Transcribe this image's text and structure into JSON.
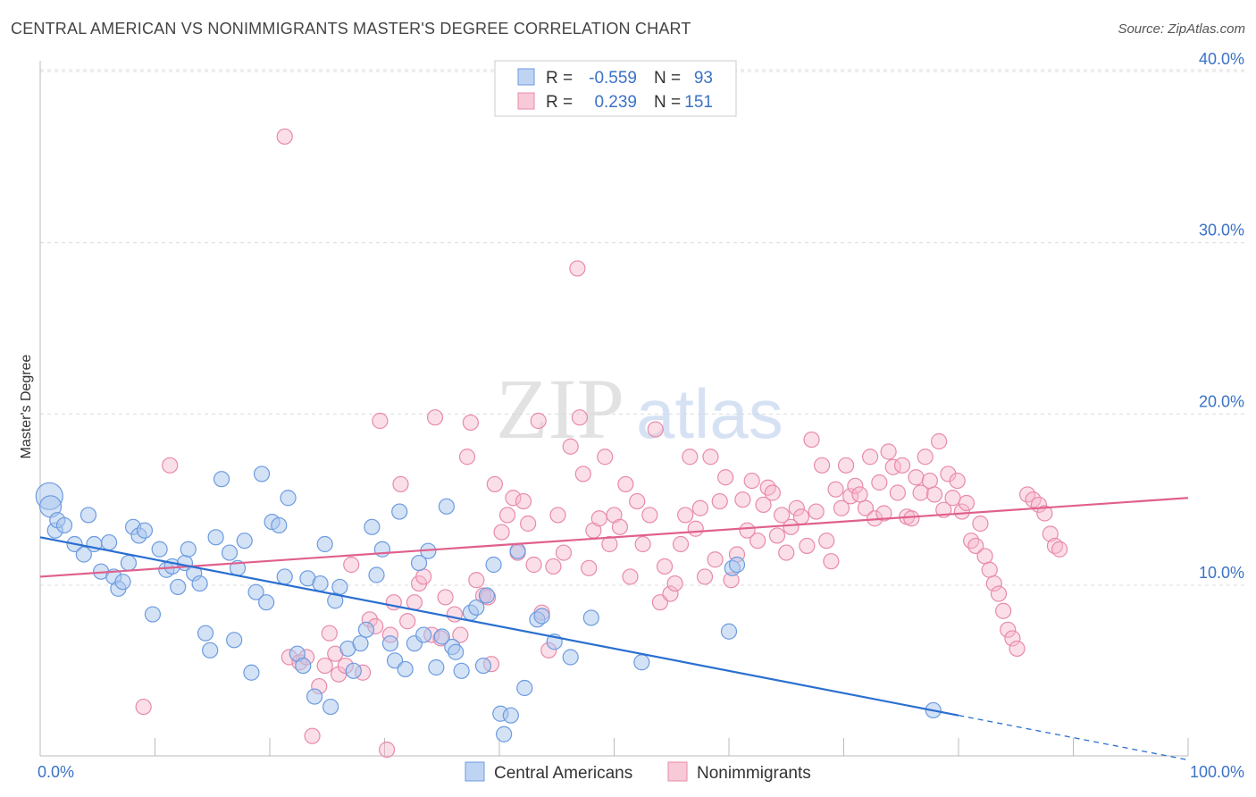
{
  "title": "CENTRAL AMERICAN VS NONIMMIGRANTS MASTER'S DEGREE CORRELATION CHART",
  "source": "Source: ZipAtlas.com",
  "watermark": {
    "zip": "ZIP",
    "atlas": "atlas"
  },
  "chart_data": {
    "type": "scatter",
    "xlabel": "",
    "ylabel": "Master's Degree",
    "xlim": [
      0,
      100
    ],
    "ylim": [
      0,
      42
    ],
    "x_tick_labels": [
      "0.0%",
      "100.0%"
    ],
    "y_ticks": [
      10,
      20,
      30,
      40
    ],
    "y_tick_labels": [
      "10.0%",
      "20.0%",
      "30.0%",
      "40.0%"
    ],
    "grid": true,
    "legend_position": "top-center",
    "colors": {
      "blue_fill": "#a9c6ee",
      "blue_stroke": "#6b9be0",
      "blue_line": "#2a6fd0",
      "pink_fill": "#f6b8cb",
      "pink_stroke": "#e88aa8",
      "pink_line": "#e0608c",
      "axis_blue_text": "#3b72c6"
    },
    "stats": [
      {
        "r_label": "R =",
        "r_value": "-0.559",
        "n_label": "N =",
        "n_value": "93"
      },
      {
        "r_label": "R =",
        "r_value": "0.239",
        "n_label": "N =",
        "n_value": "151"
      }
    ],
    "series": [
      {
        "name": "Central Americans",
        "trend": {
          "x0": 0,
          "y0": 12.8,
          "x1": 80,
          "y1": 2.4,
          "dash_to_x": 100,
          "dash_to_y": -0.2
        },
        "points": [
          [
            0.8,
            15.2
          ],
          [
            0.9,
            14.6
          ],
          [
            1.3,
            13.2
          ],
          [
            1.5,
            13.8
          ],
          [
            2.1,
            13.5
          ],
          [
            3.0,
            12.4
          ],
          [
            3.8,
            11.8
          ],
          [
            4.2,
            14.1
          ],
          [
            4.7,
            12.4
          ],
          [
            5.3,
            10.8
          ],
          [
            6.0,
            12.5
          ],
          [
            6.4,
            10.5
          ],
          [
            6.8,
            9.8
          ],
          [
            7.2,
            10.2
          ],
          [
            7.7,
            11.3
          ],
          [
            8.1,
            13.4
          ],
          [
            8.6,
            12.9
          ],
          [
            9.1,
            13.2
          ],
          [
            9.8,
            8.3
          ],
          [
            10.4,
            12.1
          ],
          [
            11.0,
            10.9
          ],
          [
            11.5,
            11.1
          ],
          [
            12.0,
            9.9
          ],
          [
            12.6,
            11.3
          ],
          [
            12.9,
            12.1
          ],
          [
            13.4,
            10.7
          ],
          [
            13.9,
            10.1
          ],
          [
            14.4,
            7.2
          ],
          [
            14.8,
            6.2
          ],
          [
            15.3,
            12.8
          ],
          [
            15.8,
            16.2
          ],
          [
            16.5,
            11.9
          ],
          [
            16.9,
            6.8
          ],
          [
            17.2,
            11.0
          ],
          [
            17.8,
            12.6
          ],
          [
            18.4,
            4.9
          ],
          [
            18.8,
            9.6
          ],
          [
            19.3,
            16.5
          ],
          [
            19.7,
            9.0
          ],
          [
            20.2,
            13.7
          ],
          [
            20.8,
            13.5
          ],
          [
            21.3,
            10.5
          ],
          [
            21.6,
            15.1
          ],
          [
            22.4,
            6.0
          ],
          [
            22.9,
            5.3
          ],
          [
            23.3,
            10.4
          ],
          [
            23.9,
            3.5
          ],
          [
            24.4,
            10.1
          ],
          [
            24.8,
            12.4
          ],
          [
            25.3,
            2.9
          ],
          [
            25.7,
            9.1
          ],
          [
            26.1,
            9.9
          ],
          [
            26.8,
            6.3
          ],
          [
            27.3,
            5.0
          ],
          [
            27.9,
            6.6
          ],
          [
            28.4,
            7.4
          ],
          [
            28.9,
            13.4
          ],
          [
            29.3,
            10.6
          ],
          [
            29.8,
            12.1
          ],
          [
            30.5,
            6.6
          ],
          [
            30.9,
            5.6
          ],
          [
            31.3,
            14.3
          ],
          [
            31.8,
            5.1
          ],
          [
            32.6,
            6.6
          ],
          [
            33.0,
            11.3
          ],
          [
            33.4,
            7.1
          ],
          [
            33.8,
            12.0
          ],
          [
            34.5,
            5.2
          ],
          [
            35.0,
            7.0
          ],
          [
            35.4,
            14.6
          ],
          [
            35.9,
            6.4
          ],
          [
            36.2,
            6.1
          ],
          [
            36.7,
            5.0
          ],
          [
            37.5,
            8.4
          ],
          [
            38.0,
            8.7
          ],
          [
            38.6,
            5.3
          ],
          [
            38.9,
            9.4
          ],
          [
            39.5,
            11.2
          ],
          [
            40.1,
            2.5
          ],
          [
            40.4,
            1.3
          ],
          [
            41.0,
            2.4
          ],
          [
            41.6,
            12.0
          ],
          [
            42.2,
            4.0
          ],
          [
            43.3,
            8.0
          ],
          [
            43.7,
            8.2
          ],
          [
            44.8,
            6.7
          ],
          [
            46.2,
            5.8
          ],
          [
            48.0,
            8.1
          ],
          [
            52.4,
            5.5
          ],
          [
            60.3,
            11.0
          ],
          [
            60.7,
            11.2
          ],
          [
            60.0,
            7.3
          ],
          [
            77.8,
            2.7
          ]
        ]
      },
      {
        "name": "Nonimmigrants",
        "trend": {
          "x0": 0,
          "y0": 10.5,
          "x1": 100,
          "y1": 15.1
        },
        "points": [
          [
            9.0,
            2.9
          ],
          [
            11.3,
            17.0
          ],
          [
            21.3,
            36.2
          ],
          [
            21.7,
            5.8
          ],
          [
            22.6,
            5.5
          ],
          [
            23.2,
            5.8
          ],
          [
            23.7,
            1.2
          ],
          [
            24.3,
            4.1
          ],
          [
            24.8,
            5.3
          ],
          [
            25.2,
            7.2
          ],
          [
            25.7,
            6.0
          ],
          [
            26.0,
            4.8
          ],
          [
            26.6,
            5.3
          ],
          [
            27.1,
            11.2
          ],
          [
            28.1,
            4.9
          ],
          [
            28.7,
            8.0
          ],
          [
            29.2,
            7.6
          ],
          [
            29.6,
            19.6
          ],
          [
            30.2,
            0.4
          ],
          [
            30.5,
            7.1
          ],
          [
            30.8,
            9.0
          ],
          [
            31.4,
            15.9
          ],
          [
            32.0,
            7.9
          ],
          [
            32.6,
            9.0
          ],
          [
            33.0,
            10.1
          ],
          [
            33.4,
            10.5
          ],
          [
            34.1,
            7.1
          ],
          [
            34.4,
            19.8
          ],
          [
            34.9,
            6.9
          ],
          [
            35.3,
            9.3
          ],
          [
            36.1,
            8.3
          ],
          [
            36.6,
            7.1
          ],
          [
            37.2,
            17.5
          ],
          [
            37.5,
            19.5
          ],
          [
            38.0,
            10.3
          ],
          [
            38.6,
            9.4
          ],
          [
            39.0,
            9.3
          ],
          [
            39.3,
            5.4
          ],
          [
            39.6,
            15.9
          ],
          [
            40.2,
            13.1
          ],
          [
            40.7,
            14.1
          ],
          [
            41.2,
            15.1
          ],
          [
            41.6,
            11.9
          ],
          [
            42.1,
            14.9
          ],
          [
            42.5,
            13.6
          ],
          [
            43.0,
            11.2
          ],
          [
            43.4,
            19.6
          ],
          [
            43.7,
            8.4
          ],
          [
            44.3,
            6.2
          ],
          [
            44.7,
            11.1
          ],
          [
            45.1,
            14.1
          ],
          [
            45.6,
            11.9
          ],
          [
            46.2,
            18.1
          ],
          [
            46.8,
            28.5
          ],
          [
            47.0,
            19.8
          ],
          [
            47.3,
            16.5
          ],
          [
            47.8,
            11.0
          ],
          [
            48.2,
            13.2
          ],
          [
            48.7,
            13.9
          ],
          [
            49.2,
            17.5
          ],
          [
            49.6,
            12.4
          ],
          [
            50.0,
            14.1
          ],
          [
            50.5,
            13.4
          ],
          [
            51.0,
            15.9
          ],
          [
            51.4,
            10.5
          ],
          [
            52.0,
            14.9
          ],
          [
            52.5,
            12.4
          ],
          [
            53.1,
            14.1
          ],
          [
            53.6,
            19.1
          ],
          [
            54.0,
            9.0
          ],
          [
            54.4,
            11.1
          ],
          [
            54.9,
            9.5
          ],
          [
            55.3,
            10.1
          ],
          [
            55.8,
            12.4
          ],
          [
            56.2,
            14.1
          ],
          [
            56.6,
            17.5
          ],
          [
            57.1,
            13.3
          ],
          [
            57.5,
            14.5
          ],
          [
            57.9,
            10.5
          ],
          [
            58.4,
            17.5
          ],
          [
            58.8,
            11.5
          ],
          [
            59.2,
            14.9
          ],
          [
            59.7,
            16.3
          ],
          [
            60.2,
            10.3
          ],
          [
            60.7,
            11.8
          ],
          [
            61.2,
            15.0
          ],
          [
            61.6,
            13.2
          ],
          [
            62.0,
            16.1
          ],
          [
            62.5,
            12.6
          ],
          [
            63.0,
            14.7
          ],
          [
            63.4,
            15.7
          ],
          [
            63.8,
            15.4
          ],
          [
            64.2,
            12.9
          ],
          [
            64.6,
            14.1
          ],
          [
            65.0,
            11.9
          ],
          [
            65.4,
            13.4
          ],
          [
            65.9,
            14.5
          ],
          [
            66.3,
            14.0
          ],
          [
            66.8,
            12.3
          ],
          [
            67.2,
            18.5
          ],
          [
            67.6,
            14.3
          ],
          [
            68.1,
            17.0
          ],
          [
            68.5,
            12.6
          ],
          [
            68.9,
            11.4
          ],
          [
            69.3,
            15.6
          ],
          [
            69.8,
            14.5
          ],
          [
            70.2,
            17.0
          ],
          [
            70.6,
            15.2
          ],
          [
            71.0,
            15.8
          ],
          [
            71.4,
            15.3
          ],
          [
            71.9,
            14.5
          ],
          [
            72.3,
            17.5
          ],
          [
            72.7,
            13.9
          ],
          [
            73.1,
            16.0
          ],
          [
            73.5,
            14.2
          ],
          [
            73.9,
            17.8
          ],
          [
            74.3,
            16.9
          ],
          [
            74.7,
            15.4
          ],
          [
            75.1,
            17.0
          ],
          [
            75.5,
            14.0
          ],
          [
            75.9,
            13.9
          ],
          [
            76.3,
            16.3
          ],
          [
            76.7,
            15.4
          ],
          [
            77.1,
            17.5
          ],
          [
            77.5,
            16.1
          ],
          [
            77.9,
            15.3
          ],
          [
            78.3,
            18.4
          ],
          [
            78.7,
            14.4
          ],
          [
            79.1,
            16.5
          ],
          [
            79.5,
            15.1
          ],
          [
            79.9,
            16.1
          ],
          [
            80.3,
            14.3
          ],
          [
            80.7,
            14.8
          ],
          [
            81.1,
            12.6
          ],
          [
            81.5,
            12.3
          ],
          [
            81.9,
            13.6
          ],
          [
            82.3,
            11.7
          ],
          [
            82.7,
            10.9
          ],
          [
            83.1,
            10.1
          ],
          [
            83.5,
            9.5
          ],
          [
            83.9,
            8.5
          ],
          [
            84.3,
            7.4
          ],
          [
            84.7,
            6.9
          ],
          [
            85.1,
            6.3
          ],
          [
            86.0,
            15.3
          ],
          [
            86.5,
            15.0
          ],
          [
            87.0,
            14.7
          ],
          [
            87.5,
            14.2
          ],
          [
            88.0,
            13.0
          ],
          [
            88.4,
            12.3
          ],
          [
            88.8,
            12.1
          ]
        ]
      }
    ]
  }
}
